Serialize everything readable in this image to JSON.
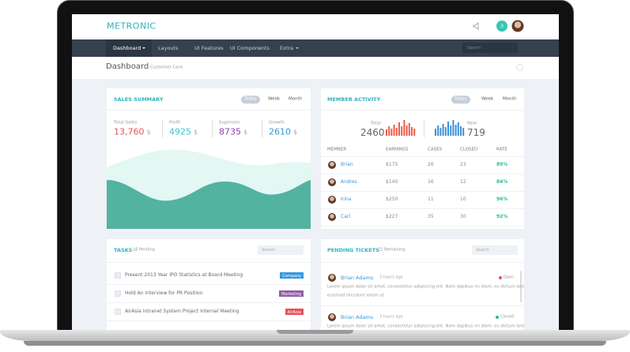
{
  "header": {
    "brand": "METRONIC",
    "notification_count": "3"
  },
  "nav": {
    "items": [
      "Dashboard",
      "Layouts",
      "UI Features",
      "UI Components",
      "Extra"
    ],
    "search_placeholder": "Search"
  },
  "page": {
    "title": "Dashboard",
    "subtitle": "Customer Care"
  },
  "sales_summary": {
    "title": "SALES SUMMARY",
    "tabs": [
      "Today",
      "Week",
      "Month"
    ],
    "stats": [
      {
        "label": "Total Sales",
        "value": "13,760",
        "unit": "$"
      },
      {
        "label": "Profit",
        "value": "4925",
        "unit": "$"
      },
      {
        "label": "Expenses",
        "value": "8735",
        "unit": "$"
      },
      {
        "label": "Growth",
        "value": "2610",
        "unit": "$"
      }
    ]
  },
  "member_activity": {
    "title": "MEMBER ACTIVITY",
    "tabs": [
      "Today",
      "Week",
      "Month"
    ],
    "total_label": "Total",
    "total_value": "2460",
    "new_label": "New",
    "new_value": "719",
    "columns": [
      "MEMBER",
      "EARNINGS",
      "CASES",
      "CLOSED",
      "RATE"
    ],
    "rows": [
      [
        "Brian",
        "$175",
        "26",
        "23",
        "89%"
      ],
      [
        "Andres",
        "$140",
        "16",
        "12",
        "84%"
      ],
      [
        "Irina",
        "$250",
        "11",
        "10",
        "96%"
      ],
      [
        "Carl",
        "$227",
        "35",
        "30",
        "92%"
      ]
    ]
  },
  "tasks": {
    "title": "TASKS",
    "subtitle": "16 Pending",
    "search_placeholder": "Search",
    "items": [
      {
        "text": "Present 2013 Year IPO Statistics at Board Meeting",
        "tag": "Company"
      },
      {
        "text": "Hold An Interview for PR Position",
        "tag": "Marketing"
      },
      {
        "text": "AirAsia Intranet System Project Internal Meeting",
        "tag": "AirAsia"
      }
    ]
  },
  "pending_tickets": {
    "title": "PENDING TICKETS",
    "subtitle": "22 Remaining",
    "search_placeholder": "Search",
    "tickets": [
      {
        "name": "Brian Adams",
        "time": "3 hours ago",
        "status": "Open",
        "text_lines": [
          "Lorem ipsum dolor sit amet, consectetur adipiscing elit. Nam dapibus mi diam, eu dictum lorem",
          "euismod tincidunt lorem ut."
        ]
      },
      {
        "name": "Brian Adams",
        "time": "3 hours ago",
        "status": "Closed",
        "text_lines": [
          "Lorem ipsum dolor sit amet, consectetur adipiscing elit. Nam dapibus mi diam, eu dictum lorem"
        ]
      }
    ]
  }
}
